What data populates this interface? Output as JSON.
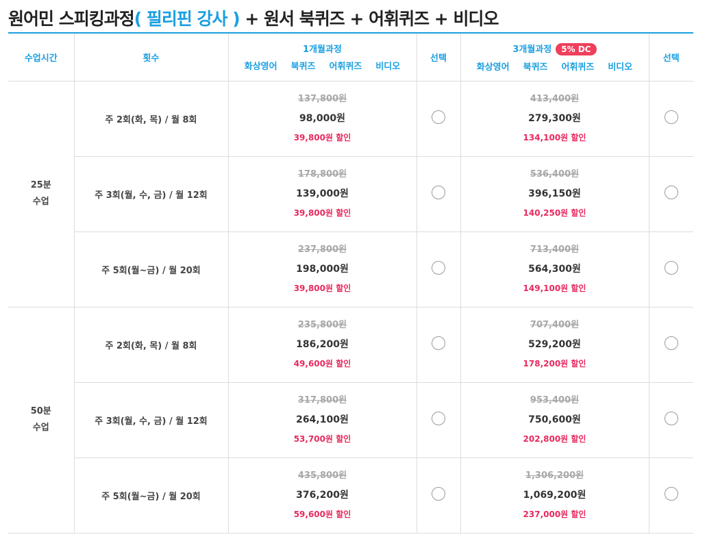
{
  "title": {
    "prefix": "원어민 스피킹과정",
    "accent": "( 필리핀 강사 )",
    "suffix": " + 원서 북퀴즈 + 어휘퀴즈 + 비디오"
  },
  "header": {
    "time": "수업시간",
    "freq": "횟수",
    "course1": "1개월과정",
    "course3": "3개월과정",
    "dc_badge": "5% DC",
    "select": "선택",
    "subitems": [
      "화상영어",
      "북퀴즈",
      "어휘퀴즈",
      "비디오"
    ]
  },
  "groups": [
    {
      "time_line1": "25분",
      "time_line2": "수업",
      "rows": [
        {
          "freq": "주 2회(화, 목) / 월 8회",
          "m1_orig": "137,800원",
          "m1_price": "98,000원",
          "m1_disc": "39,800원 할인",
          "m3_orig": "413,400원",
          "m3_price": "279,300원",
          "m3_disc": "134,100원 할인"
        },
        {
          "freq": "주 3회(월, 수, 금) / 월 12회",
          "m1_orig": "178,800원",
          "m1_price": "139,000원",
          "m1_disc": "39,800원 할인",
          "m3_orig": "536,400원",
          "m3_price": "396,150원",
          "m3_disc": "140,250원 할인"
        },
        {
          "freq": "주 5회(월~금) / 월 20회",
          "m1_orig": "237,800원",
          "m1_price": "198,000원",
          "m1_disc": "39,800원 할인",
          "m3_orig": "713,400원",
          "m3_price": "564,300원",
          "m3_disc": "149,100원 할인"
        }
      ]
    },
    {
      "time_line1": "50분",
      "time_line2": "수업",
      "rows": [
        {
          "freq": "주 2회(화, 목) / 월 8회",
          "m1_orig": "235,800원",
          "m1_price": "186,200원",
          "m1_disc": "49,600원 할인",
          "m3_orig": "707,400원",
          "m3_price": "529,200원",
          "m3_disc": "178,200원 할인"
        },
        {
          "freq": "주 3회(월, 수, 금) / 월 12회",
          "m1_orig": "317,800원",
          "m1_price": "264,100원",
          "m1_disc": "53,700원 할인",
          "m3_orig": "953,400원",
          "m3_price": "750,600원",
          "m3_disc": "202,800원 할인"
        },
        {
          "freq": "주 5회(월~금) / 월 20회",
          "m1_orig": "435,800원",
          "m1_price": "376,200원",
          "m1_disc": "59,600원 할인",
          "m3_orig": "1,306,200원",
          "m3_price": "1,069,200원",
          "m3_disc": "237,000원 할인"
        }
      ]
    }
  ],
  "colors": {
    "accent": "#1a9fe0",
    "discount": "#e8295e",
    "badge": "#ef3f5a",
    "strikethrough": "#a8a8a8"
  }
}
